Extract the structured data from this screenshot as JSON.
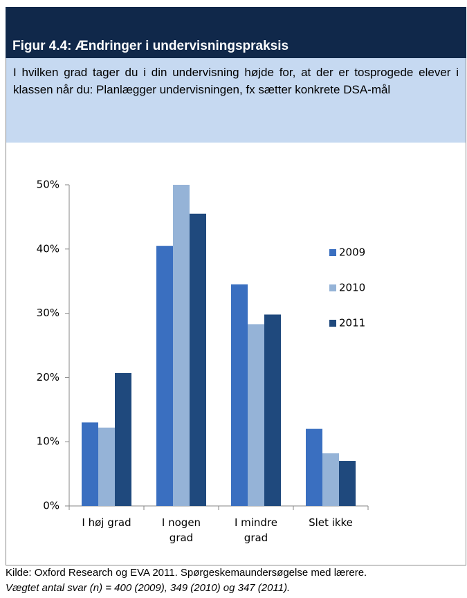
{
  "header": {
    "title": "Figur 4.4: Ændringer i undervisningspraksis",
    "question": "I hvilken grad tager du i din undervisning højde for, at der er tosprogede elever i klassen når du: Planlægger undervisningen, fx sætter konkrete DSA-mål"
  },
  "chart_data": {
    "type": "bar",
    "categories": [
      "I høj grad",
      "I nogen grad",
      "I mindre grad",
      "Slet ikke"
    ],
    "series": [
      {
        "name": "2009",
        "color": "#3a6fc0",
        "values": [
          13,
          40.5,
          34.5,
          12
        ]
      },
      {
        "name": "2010",
        "color": "#95b3d7",
        "values": [
          12.2,
          50,
          28.3,
          8.2
        ]
      },
      {
        "name": "2011",
        "color": "#1f497d",
        "values": [
          20.7,
          45.5,
          29.8,
          7
        ]
      }
    ],
    "ylim": [
      0,
      50
    ],
    "yticks": [
      {
        "value": 0,
        "label": "0%"
      },
      {
        "value": 10,
        "label": "10%"
      },
      {
        "value": 20,
        "label": "20%"
      },
      {
        "value": 30,
        "label": "30%"
      },
      {
        "value": 40,
        "label": "40%"
      },
      {
        "value": 50,
        "label": "50%"
      }
    ],
    "legend": "right"
  },
  "footer": {
    "source": "Kilde: Oxford Research og EVA 2011. Spørgeskemaundersøgelse med lærere.",
    "note": "Vægtet antal svar (n) = 400 (2009), 349 (2010) og 347 (2011)."
  }
}
